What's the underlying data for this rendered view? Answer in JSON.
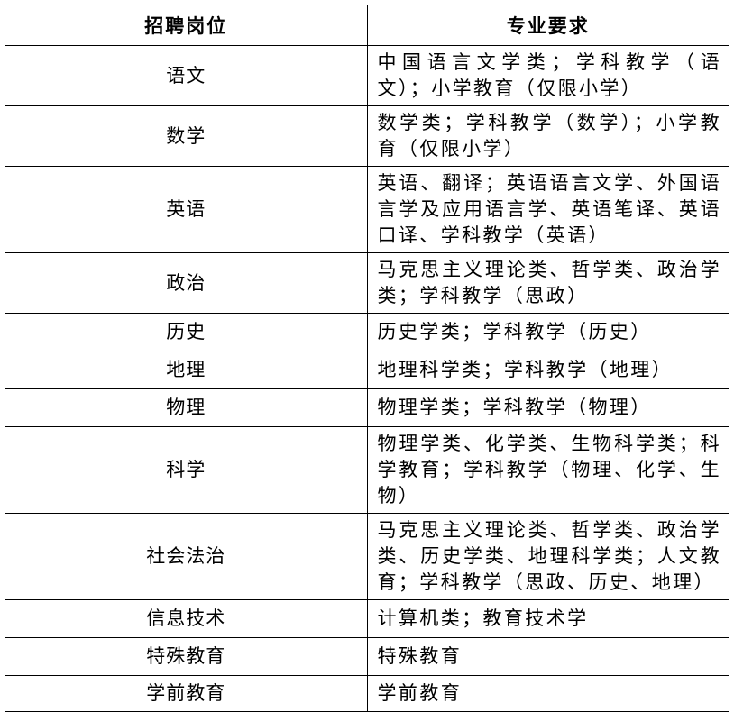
{
  "header": {
    "position": "招聘岗位",
    "requirement": "专业要求"
  },
  "rows": [
    {
      "position": "语文",
      "requirement": "中国语言文学类；学科教学（语文）；小学教育（仅限小学）"
    },
    {
      "position": "数学",
      "requirement": "数学类；学科教学（数学）；小学教育（仅限小学）"
    },
    {
      "position": "英语",
      "requirement": "英语、翻译；英语语言文学、外国语言学及应用语言学、英语笔译、英语口译、学科教学（英语）"
    },
    {
      "position": "政治",
      "requirement": "马克思主义理论类、哲学类、政治学类；学科教学（思政）"
    },
    {
      "position": "历史",
      "requirement": "历史学类；学科教学（历史）"
    },
    {
      "position": "地理",
      "requirement": "地理科学类；学科教学（地理）"
    },
    {
      "position": "物理",
      "requirement": "物理学类；学科教学（物理）"
    },
    {
      "position": "科学",
      "requirement": "物理学类、化学类、生物科学类；科学教育；学科教学（物理、化学、生物）"
    },
    {
      "position": "社会法治",
      "requirement": "马克思主义理论类、哲学类、政治学类、历史学类、地理科学类；人文教育；学科教学（思政、历史、地理）"
    },
    {
      "position": "信息技术",
      "requirement": "计算机类；教育技术学"
    },
    {
      "position": "特殊教育",
      "requirement": "特殊教育"
    },
    {
      "position": "学前教育",
      "requirement": "学前教育"
    }
  ]
}
